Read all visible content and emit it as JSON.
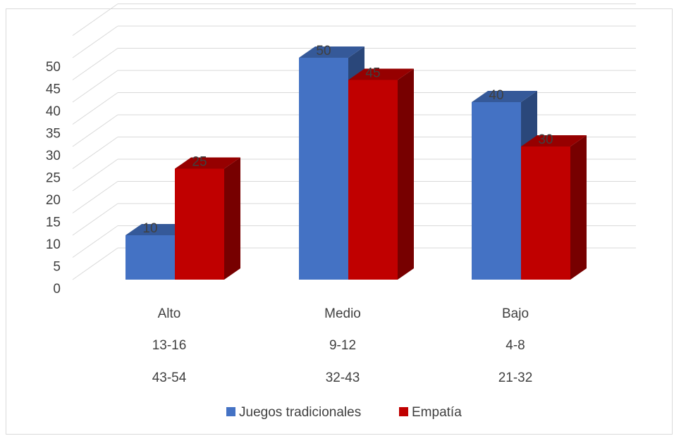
{
  "chart_data": {
    "type": "bar",
    "categories": [
      "Alto",
      "Medio",
      "Bajo"
    ],
    "category_sublabels": [
      [
        "13-16",
        "43-54"
      ],
      [
        "9-12",
        "32-43"
      ],
      [
        "4-8",
        "21-32"
      ]
    ],
    "series": [
      {
        "name": "Juegos tradicionales",
        "values": [
          10,
          50,
          40
        ],
        "color": "#4472c4"
      },
      {
        "name": "Empatía",
        "values": [
          25,
          45,
          30
        ],
        "color": "#c00000"
      }
    ],
    "yticks": [
      "0",
      "5",
      "10",
      "15",
      "20",
      "25",
      "30",
      "35",
      "40",
      "45",
      "50"
    ],
    "ylim": [
      0,
      50
    ],
    "grid": true,
    "legend": "bottom",
    "style": "3d-clustered-column"
  }
}
